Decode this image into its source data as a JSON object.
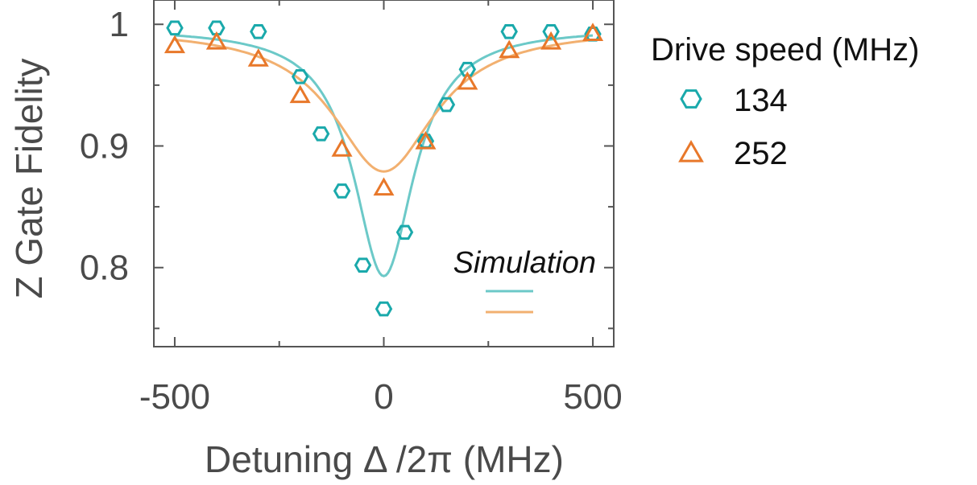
{
  "chart_data": {
    "type": "scatter",
    "xlabel": "Detuning Δ /2π (MHz)",
    "ylabel": "Z Gate Fidelity",
    "xlim": [
      -550,
      550
    ],
    "ylim": [
      0.735,
      1.02
    ],
    "x_ticks": [
      -500,
      0,
      500
    ],
    "x_tick_labels": [
      "-500",
      "0",
      "500"
    ],
    "y_ticks": [
      0.8,
      0.9,
      1.0
    ],
    "y_tick_labels": [
      "0.8",
      "0.9",
      "1"
    ],
    "x_minor_ticks": [
      -250,
      250
    ],
    "y_minor_ticks": [
      0.75,
      0.85,
      0.95
    ],
    "grid": false,
    "legend_title": "Drive speed (MHz)",
    "legend_position": "outside-right",
    "series": [
      {
        "name": "134",
        "marker": "hexagon",
        "color": "#1aa9ab",
        "x": [
          -500,
          -400,
          -300,
          -200,
          -150,
          -100,
          -50,
          0,
          50,
          100,
          150,
          200,
          300,
          400,
          500
        ],
        "y": [
          0.997,
          0.997,
          0.994,
          0.957,
          0.91,
          0.863,
          0.802,
          0.766,
          0.829,
          0.904,
          0.934,
          0.963,
          0.994,
          0.994,
          0.992
        ]
      },
      {
        "name": "252",
        "marker": "triangle",
        "color": "#e8782a",
        "x": [
          -500,
          -400,
          -300,
          -200,
          -100,
          0,
          100,
          200,
          300,
          400,
          500
        ],
        "y": [
          0.982,
          0.985,
          0.971,
          0.941,
          0.897,
          0.865,
          0.903,
          0.952,
          0.978,
          0.985,
          0.992
        ]
      }
    ],
    "simulation": {
      "label": "Simulation",
      "curves": [
        {
          "name": "134",
          "color": "#6cc9c8",
          "baseline": 0.997,
          "depth": 0.204,
          "width": 88
        },
        {
          "name": "252",
          "color": "#f2b070",
          "baseline": 0.997,
          "depth": 0.118,
          "width": 150
        }
      ]
    }
  }
}
